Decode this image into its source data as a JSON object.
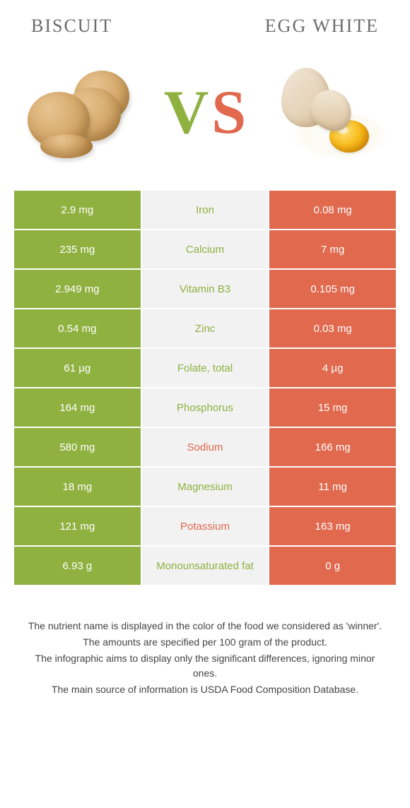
{
  "colors": {
    "left": "#8fb140",
    "right": "#e0694e",
    "mid_bg": "#f2f2f2",
    "title_text": "#6b6b6b",
    "cell_text": "#ffffff"
  },
  "titles": {
    "left": "Biscuit",
    "right": "Egg white"
  },
  "vs": {
    "v": "V",
    "s": "S"
  },
  "rows": [
    {
      "left": "2.9 mg",
      "label": "Iron",
      "right": "0.08 mg",
      "winner": "left"
    },
    {
      "left": "235 mg",
      "label": "Calcium",
      "right": "7 mg",
      "winner": "left"
    },
    {
      "left": "2.949 mg",
      "label": "Vitamin B3",
      "right": "0.105 mg",
      "winner": "left"
    },
    {
      "left": "0.54 mg",
      "label": "Zinc",
      "right": "0.03 mg",
      "winner": "left"
    },
    {
      "left": "61 µg",
      "label": "Folate, total",
      "right": "4 µg",
      "winner": "left"
    },
    {
      "left": "164 mg",
      "label": "Phosphorus",
      "right": "15 mg",
      "winner": "left"
    },
    {
      "left": "580 mg",
      "label": "Sodium",
      "right": "166 mg",
      "winner": "right"
    },
    {
      "left": "18 mg",
      "label": "Magnesium",
      "right": "11 mg",
      "winner": "left"
    },
    {
      "left": "121 mg",
      "label": "Potassium",
      "right": "163 mg",
      "winner": "right"
    },
    {
      "left": "6.93 g",
      "label": "Monounsaturated fat",
      "right": "0 g",
      "winner": "left"
    }
  ],
  "footer": [
    "The nutrient name is displayed in the color of the food we considered as 'winner'.",
    "The amounts are specified per 100 gram of the product.",
    "The infographic aims to display only the significant differences, ignoring minor ones.",
    "The main source of information is USDA Food Composition Database."
  ]
}
